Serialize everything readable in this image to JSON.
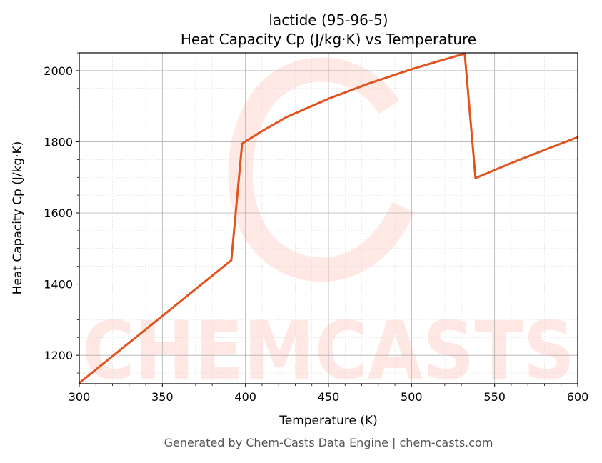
{
  "chart_data": {
    "type": "line",
    "title": "lactide (95-96-5)",
    "subtitle": "Heat Capacity Cp (J/kg·K) vs Temperature",
    "xlabel": "Temperature (K)",
    "ylabel": "Heat Capacity Cp (J/kg·K)",
    "xlim": [
      300,
      600
    ],
    "ylim": [
      1120,
      2050
    ],
    "xticks": [
      300,
      350,
      400,
      450,
      500,
      550,
      600
    ],
    "yticks": [
      1200,
      1400,
      1600,
      1800,
      2000
    ],
    "x_minor_step": 10,
    "y_minor_step": 50,
    "grid": true,
    "series": [
      {
        "color": "#e0541f",
        "x": [
          300,
          391.5,
          398,
          410,
          425,
          450,
          475,
          500,
          515,
          532,
          538.5,
          560,
          580,
          600
        ],
        "y": [
          1122,
          1467,
          1795,
          1830,
          1870,
          1921,
          1965,
          2004,
          2025,
          2048,
          1698,
          1740,
          1777,
          1813
        ]
      }
    ]
  },
  "watermark": "CHEMCASTS",
  "footer": "Generated by Chem-Casts Data Engine | chem-casts.com"
}
